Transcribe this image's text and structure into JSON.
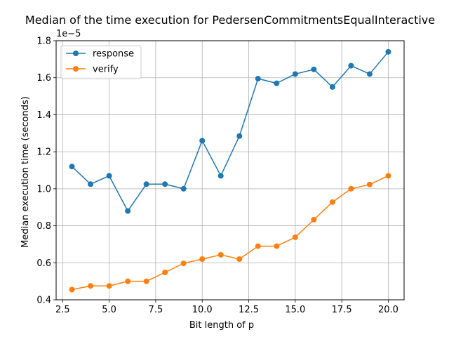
{
  "chart_data": {
    "type": "line",
    "title": "Median of the time execution for PedersenCommitmentsEqualInteractive",
    "xlabel": "Bit length of p",
    "ylabel": "Median execution time (seconds)",
    "y_offset_label": "1e−5",
    "xlim": [
      2.15,
      20.85
    ],
    "ylim": [
      0.4,
      1.8
    ],
    "x_ticks": [
      2.5,
      5.0,
      7.5,
      10.0,
      12.5,
      15.0,
      17.5,
      20.0
    ],
    "x_tick_labels": [
      "2.5",
      "5.0",
      "7.5",
      "10.0",
      "12.5",
      "15.0",
      "17.5",
      "20.0"
    ],
    "y_ticks": [
      0.4,
      0.6,
      0.8,
      1.0,
      1.2,
      1.4,
      1.6,
      1.8
    ],
    "y_tick_labels": [
      "0.4",
      "0.6",
      "0.8",
      "1.0",
      "1.2",
      "1.4",
      "1.6",
      "1.8"
    ],
    "grid": true,
    "legend_position": "top-left",
    "x": [
      3,
      4,
      5,
      6,
      7,
      8,
      9,
      10,
      11,
      12,
      13,
      14,
      15,
      16,
      17,
      18,
      19,
      20
    ],
    "series": [
      {
        "name": "response",
        "color": "#1f77b4",
        "values": [
          1.12,
          1.025,
          1.07,
          0.88,
          1.025,
          1.025,
          1.0,
          1.26,
          1.07,
          1.285,
          1.595,
          1.57,
          1.62,
          1.645,
          1.55,
          1.665,
          1.62,
          1.74
        ]
      },
      {
        "name": "verify",
        "color": "#ff7f0e",
        "values": [
          0.455,
          0.475,
          0.475,
          0.5,
          0.5,
          0.548,
          0.597,
          0.62,
          0.643,
          0.62,
          0.69,
          0.69,
          0.738,
          0.833,
          0.928,
          1.0,
          1.023,
          1.07
        ]
      }
    ]
  }
}
